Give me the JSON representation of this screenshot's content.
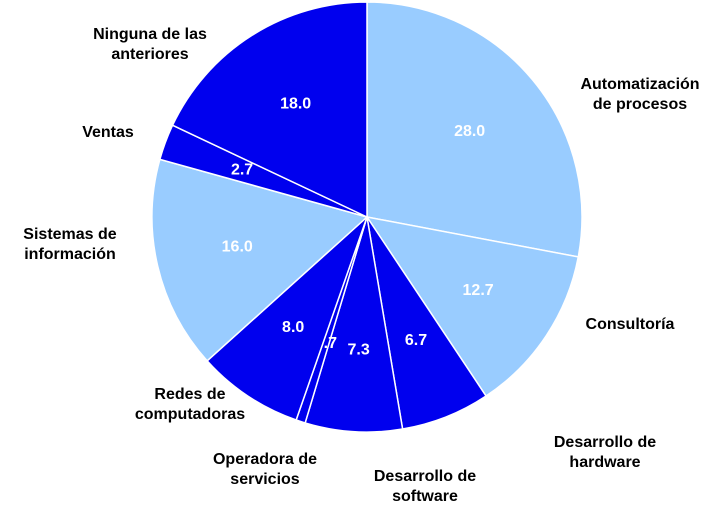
{
  "chart_data": {
    "type": "pie",
    "categories": [
      "Automatización de procesos",
      "Consultoría",
      "Desarrollo de hardware",
      "Desarrollo de software",
      "Operadora de servicios",
      "Redes de computadoras",
      "Sistemas de información",
      "Ventas",
      "Ninguna de las anteriores"
    ],
    "values": [
      28.0,
      12.7,
      6.7,
      7.3,
      0.7,
      8.0,
      16.0,
      2.7,
      18.0
    ],
    "value_labels": [
      "28.0",
      "12.7",
      "6.7",
      "7.3",
      "0.7",
      "8.0",
      "16.0",
      "2.7",
      "18.0"
    ],
    "colors": [
      "#99ccff",
      "#99ccff",
      "#0000ee",
      "#0000ee",
      "#0000ee",
      "#0000ee",
      "#99ccff",
      "#0000ee",
      "#0000ee"
    ]
  }
}
